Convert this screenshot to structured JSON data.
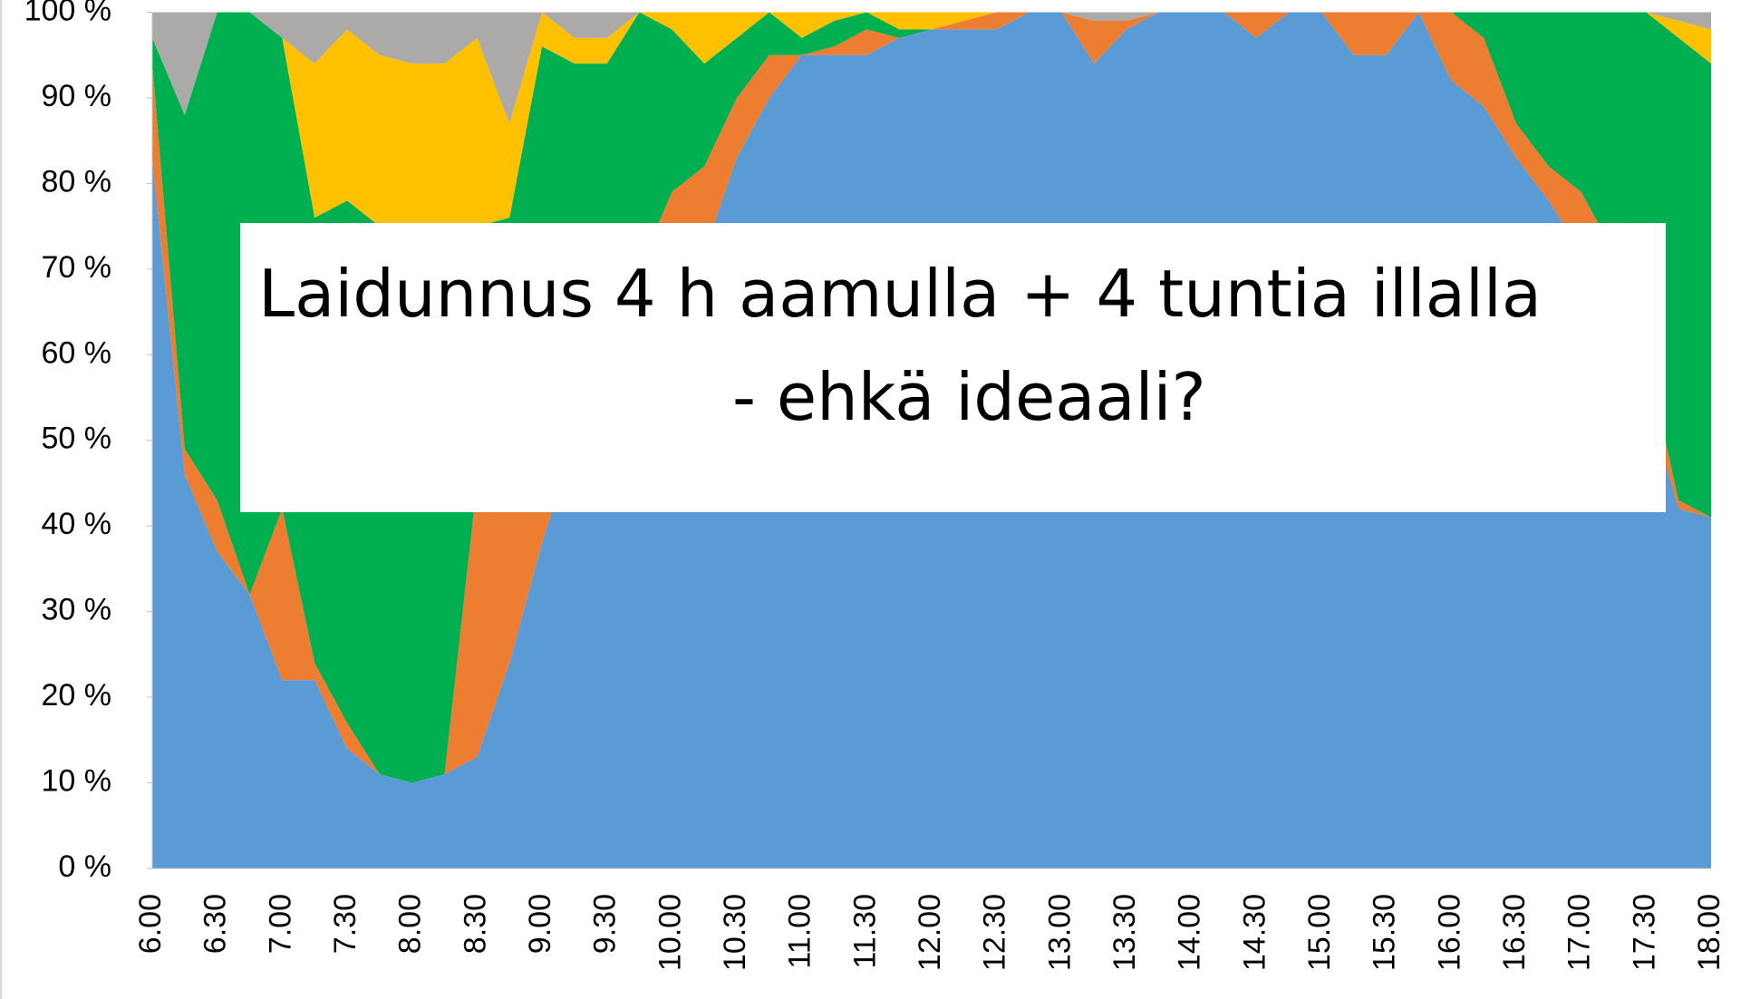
{
  "chart_data": {
    "type": "stacked-area",
    "annotation": [
      "Laidunnus 4 h aamulla + 4 tuntia illalla",
      "- ehkä ideaali?"
    ],
    "categories": [
      "6.00",
      null,
      "6.30",
      null,
      "7.00",
      null,
      "7.30",
      null,
      "8.00",
      null,
      "8.30",
      null,
      "9.00",
      null,
      "9.30",
      null,
      "10.00",
      null,
      "10.30",
      null,
      "11.00",
      null,
      "11.30",
      null,
      "12.00",
      null,
      "12.30",
      null,
      "13.00",
      null,
      "13.30",
      null,
      "14.00",
      null,
      "14.30",
      null,
      "15.00",
      null,
      "15.30",
      null,
      "16.00",
      null,
      "16.30",
      null,
      "17.00",
      null,
      "17.30",
      null,
      "18.00"
    ],
    "series": [
      {
        "color": "#5B9BD5",
        "values": [
          83,
          46,
          37,
          32,
          22,
          22,
          14,
          11,
          10,
          11,
          13,
          24,
          38,
          50,
          58,
          65,
          70,
          72,
          83,
          90,
          95,
          95,
          95,
          97,
          98,
          98,
          98,
          100,
          100,
          94,
          98,
          100,
          100,
          100,
          97,
          100,
          100,
          95,
          95,
          100,
          92,
          89,
          83,
          78,
          72,
          65,
          55,
          42,
          41
        ]
      },
      {
        "color": "#ED7D31",
        "values": [
          11,
          3,
          6,
          0,
          20,
          2,
          3,
          0,
          0,
          0,
          32,
          31,
          7,
          6,
          5,
          5,
          9,
          10,
          7,
          5,
          0,
          1,
          3,
          0,
          0,
          1,
          2,
          0,
          0,
          5,
          1,
          0,
          0,
          0,
          3,
          0,
          0,
          5,
          5,
          0,
          8,
          8,
          4,
          4,
          7,
          7,
          5,
          1,
          0
        ]
      },
      {
        "color": "#00B050",
        "values": [
          3,
          39,
          57,
          68,
          55,
          52,
          61,
          64,
          64,
          63,
          30,
          21,
          51,
          38,
          31,
          30,
          19,
          12,
          7,
          5,
          2,
          3,
          2,
          1,
          0,
          0,
          0,
          0,
          0,
          0,
          0,
          0,
          0,
          0,
          0,
          0,
          0,
          0,
          0,
          0,
          0,
          3,
          13,
          18,
          21,
          28,
          40,
          54,
          53
        ]
      },
      {
        "color": "#FFC000",
        "values": [
          0,
          0,
          0,
          0,
          0,
          18,
          20,
          20,
          20,
          20,
          22,
          11,
          4,
          3,
          3,
          0,
          2,
          6,
          3,
          0,
          3,
          1,
          0,
          2,
          2,
          1,
          0,
          0,
          0,
          0,
          0,
          0,
          0,
          0,
          0,
          0,
          0,
          0,
          0,
          0,
          0,
          0,
          0,
          0,
          0,
          0,
          0,
          2,
          4
        ]
      },
      {
        "color": "#ACA9A9",
        "values": [
          3,
          12,
          0,
          0,
          3,
          6,
          2,
          5,
          6,
          6,
          3,
          13,
          0,
          3,
          3,
          0,
          0,
          0,
          0,
          0,
          0,
          0,
          0,
          0,
          0,
          0,
          0,
          0,
          0,
          1,
          1,
          0,
          0,
          0,
          0,
          0,
          0,
          0,
          0,
          0,
          0,
          0,
          0,
          0,
          0,
          0,
          0,
          1,
          2
        ]
      }
    ],
    "ylim": [
      0,
      100
    ],
    "yticks": [
      {
        "value": 0,
        "label": "0 %"
      },
      {
        "value": 10,
        "label": "10 %"
      },
      {
        "value": 20,
        "label": "20 %"
      },
      {
        "value": 30,
        "label": "30 %"
      },
      {
        "value": 40,
        "label": "40 %"
      },
      {
        "value": 50,
        "label": "50 %"
      },
      {
        "value": 60,
        "label": "60 %"
      },
      {
        "value": 70,
        "label": "70 %"
      },
      {
        "value": 80,
        "label": "80 %"
      },
      {
        "value": 90,
        "label": "90 %"
      },
      {
        "value": 100,
        "label": "100 %"
      }
    ]
  }
}
